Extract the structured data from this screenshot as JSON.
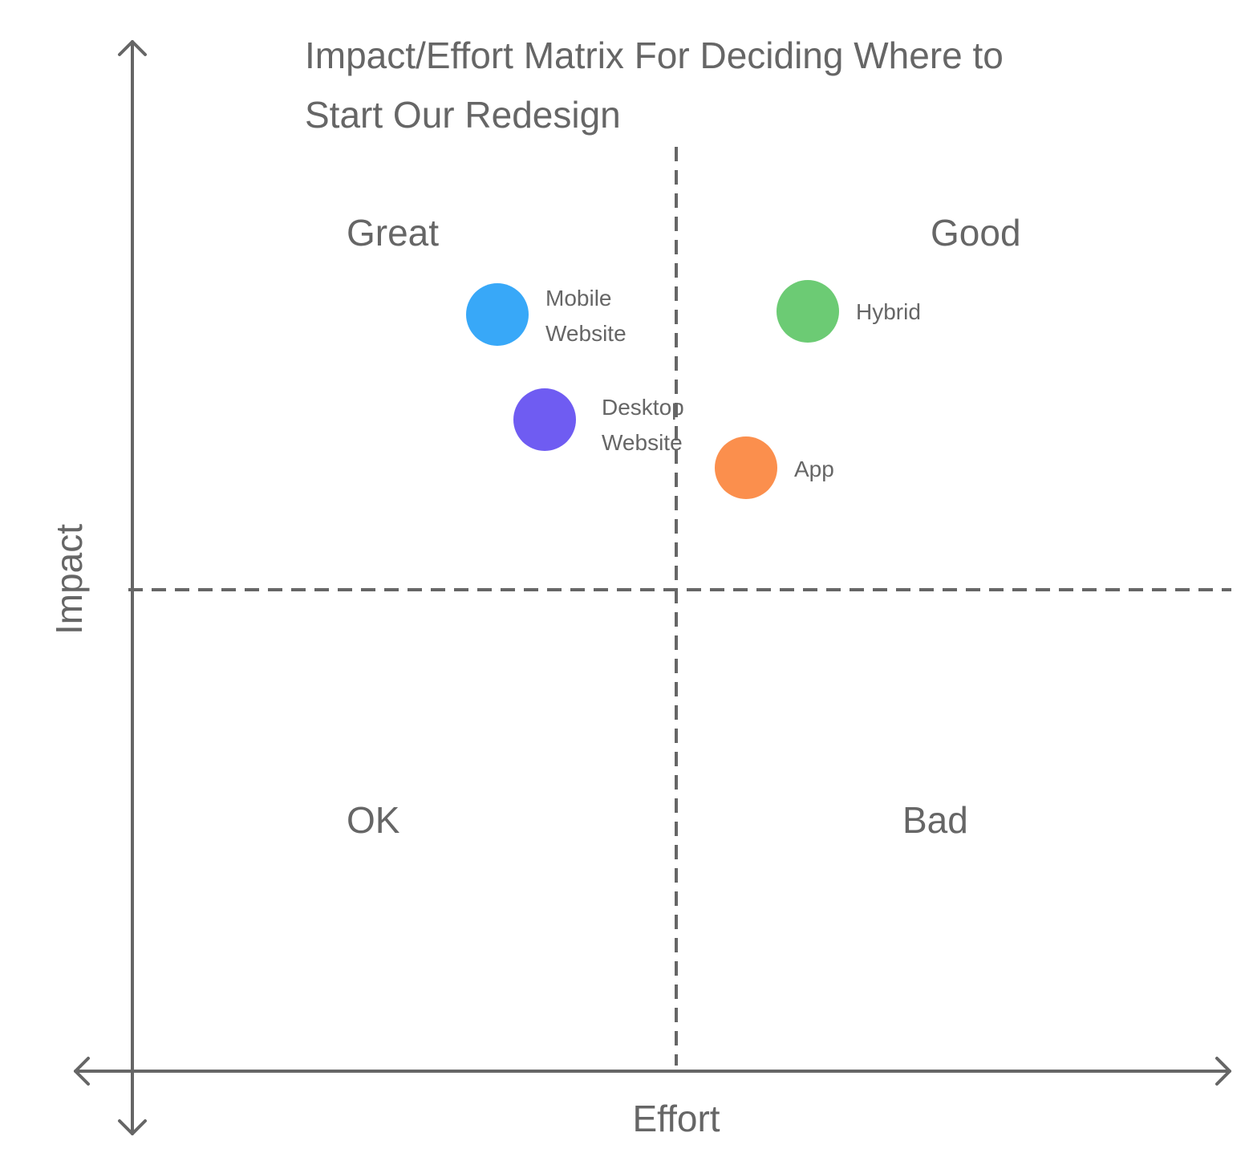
{
  "title": "Impact/Effort Matrix For Deciding Where to Start Our Redesign",
  "axes": {
    "x_label": "Effort",
    "y_label": "Impact"
  },
  "quadrants": [
    "Great",
    "Good",
    "OK",
    "Bad"
  ],
  "nodes": [
    {
      "label": "Mobile Website"
    },
    {
      "label": "Desktop Website"
    },
    {
      "label": "Hybrid"
    },
    {
      "label": "App"
    }
  ]
}
